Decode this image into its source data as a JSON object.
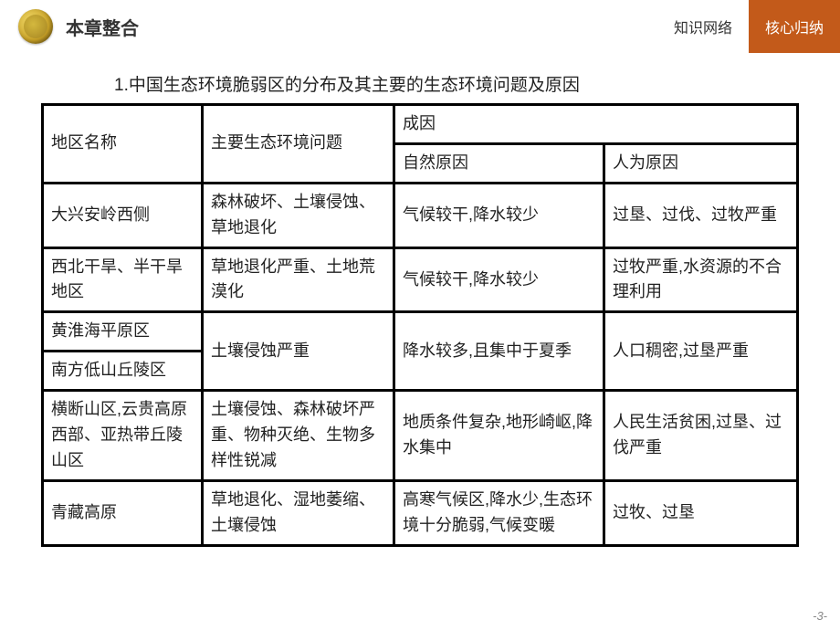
{
  "header": {
    "chapter_title": "本章整合",
    "tabs": [
      {
        "label": "知识网络",
        "active": false
      },
      {
        "label": "核心归纳",
        "active": true
      }
    ]
  },
  "section_title": "1.中国生态环境脆弱区的分布及其主要的生态环境问题及原因",
  "table": {
    "headers": {
      "region": "地区名称",
      "problem": "主要生态环境问题",
      "cause": "成因",
      "natural": "自然原因",
      "human": "人为原因"
    },
    "rows": [
      {
        "region": "大兴安岭西侧",
        "problem": "森林破坏、土壤侵蚀、草地退化",
        "natural": "气候较干,降水较少",
        "human": "过垦、过伐、过牧严重"
      },
      {
        "region": "西北干旱、半干旱地区",
        "problem": "草地退化严重、土地荒漠化",
        "natural": "气候较干,降水较少",
        "human": "过牧严重,水资源的不合理利用"
      },
      {
        "region_a": "黄淮海平原区",
        "region_b": "南方低山丘陵区",
        "problem": "土壤侵蚀严重",
        "natural": "降水较多,且集中于夏季",
        "human": "人口稠密,过垦严重"
      },
      {
        "region": "横断山区,云贵高原西部、亚热带丘陵山区",
        "problem": "土壤侵蚀、森林破坏严重、物种灭绝、生物多样性锐减",
        "natural": "地质条件复杂,地形崎岖,降水集中",
        "human": "人民生活贫困,过垦、过伐严重"
      },
      {
        "region": "青藏高原",
        "problem": "草地退化、湿地萎缩、土壤侵蚀",
        "natural": "高寒气候区,降水少,生态环境十分脆弱,气候变暖",
        "human": "过牧、过垦"
      }
    ]
  },
  "page_number": "-3-",
  "colors": {
    "accent": "#c35a1a",
    "text": "#222222",
    "border": "#000000",
    "background": "#ffffff"
  }
}
